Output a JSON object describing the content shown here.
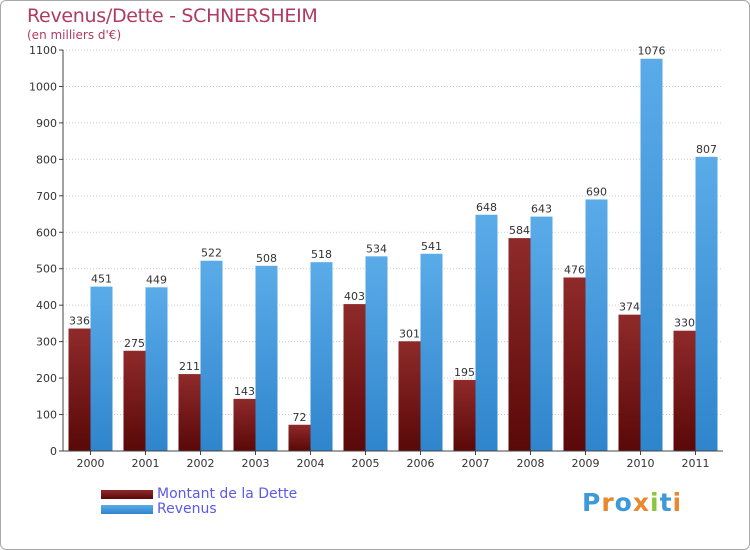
{
  "header": {
    "title": "Revenus/Dette - SCHNERSHEIM",
    "subtitle": "(en milliers d'€)"
  },
  "legend": {
    "items": [
      {
        "label": "Montant de la Dette",
        "color": "#7a1414"
      },
      {
        "label": "Revenus",
        "color": "#4a9fe0"
      }
    ]
  },
  "logo": {
    "text": "Proxiti",
    "letters": [
      {
        "ch": "P",
        "color": "#3d9ad8"
      },
      {
        "ch": "r",
        "color": "#e8892e"
      },
      {
        "ch": "o",
        "color": "#3d9ad8"
      },
      {
        "ch": "x",
        "color": "#e8892e"
      },
      {
        "ch": "i",
        "color": "#8cc63f"
      },
      {
        "ch": "t",
        "color": "#3d9ad8"
      },
      {
        "ch": "i",
        "color": "#e8892e"
      }
    ]
  },
  "chart_data": {
    "type": "bar",
    "title": "Revenus/Dette - SCHNERSHEIM",
    "subtitle": "(en milliers d'€)",
    "xlabel": "",
    "ylabel": "",
    "ylim": [
      0,
      1100
    ],
    "yticks": [
      0,
      100,
      200,
      300,
      400,
      500,
      600,
      700,
      800,
      900,
      1000,
      1100
    ],
    "grid": true,
    "legend_position": "bottom-left",
    "categories": [
      "2000",
      "2001",
      "2002",
      "2003",
      "2004",
      "2005",
      "2006",
      "2007",
      "2008",
      "2009",
      "2010",
      "2011"
    ],
    "series": [
      {
        "name": "Montant de la Dette",
        "color": "#7a1414",
        "values": [
          336,
          275,
          211,
          143,
          72,
          403,
          301,
          195,
          584,
          476,
          374,
          330
        ]
      },
      {
        "name": "Revenus",
        "color": "#4a9fe0",
        "values": [
          451,
          449,
          522,
          508,
          518,
          534,
          541,
          648,
          643,
          690,
          1076,
          807
        ]
      }
    ]
  }
}
